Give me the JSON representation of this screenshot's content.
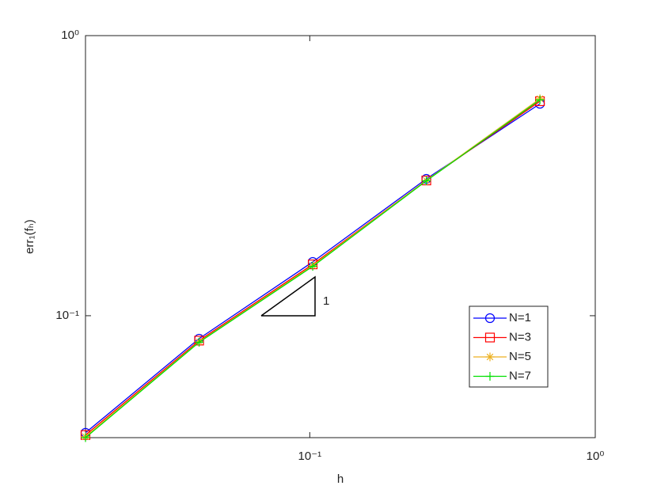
{
  "chart_data": {
    "type": "line",
    "x": [
      0.016384,
      0.04096,
      0.1024,
      0.256,
      0.64
    ],
    "series": [
      {
        "name": "N=1",
        "color": "#0000ff",
        "marker": "circle",
        "values": [
          0.0382,
          0.0828,
          0.1556,
          0.308,
          0.571
        ]
      },
      {
        "name": "N=3",
        "color": "#ff0000",
        "marker": "square",
        "values": [
          0.0375,
          0.0815,
          0.1525,
          0.304,
          0.583
        ]
      },
      {
        "name": "N=5",
        "color": "#edb120",
        "marker": "asterisk",
        "values": [
          0.037,
          0.0807,
          0.151,
          0.304,
          0.595
        ]
      },
      {
        "name": "N=7",
        "color": "#00e000",
        "marker": "plus",
        "values": [
          0.0367,
          0.0804,
          0.15,
          0.303,
          0.59
        ]
      }
    ],
    "xlabel": "h",
    "ylabel": "err₁(fₕ)",
    "xscale": "log",
    "yscale": "log",
    "xlim": [
      0.016384,
      1
    ],
    "ylim": [
      0.0367,
      1
    ],
    "xticks": [
      {
        "value": 0.1,
        "label": "10⁻¹"
      },
      {
        "value": 1,
        "label": "10⁰"
      }
    ],
    "yticks": [
      {
        "value": 0.1,
        "label": "10⁻¹"
      },
      {
        "value": 1,
        "label": "10⁰"
      }
    ],
    "annotation": "1",
    "legend": "lower right"
  }
}
